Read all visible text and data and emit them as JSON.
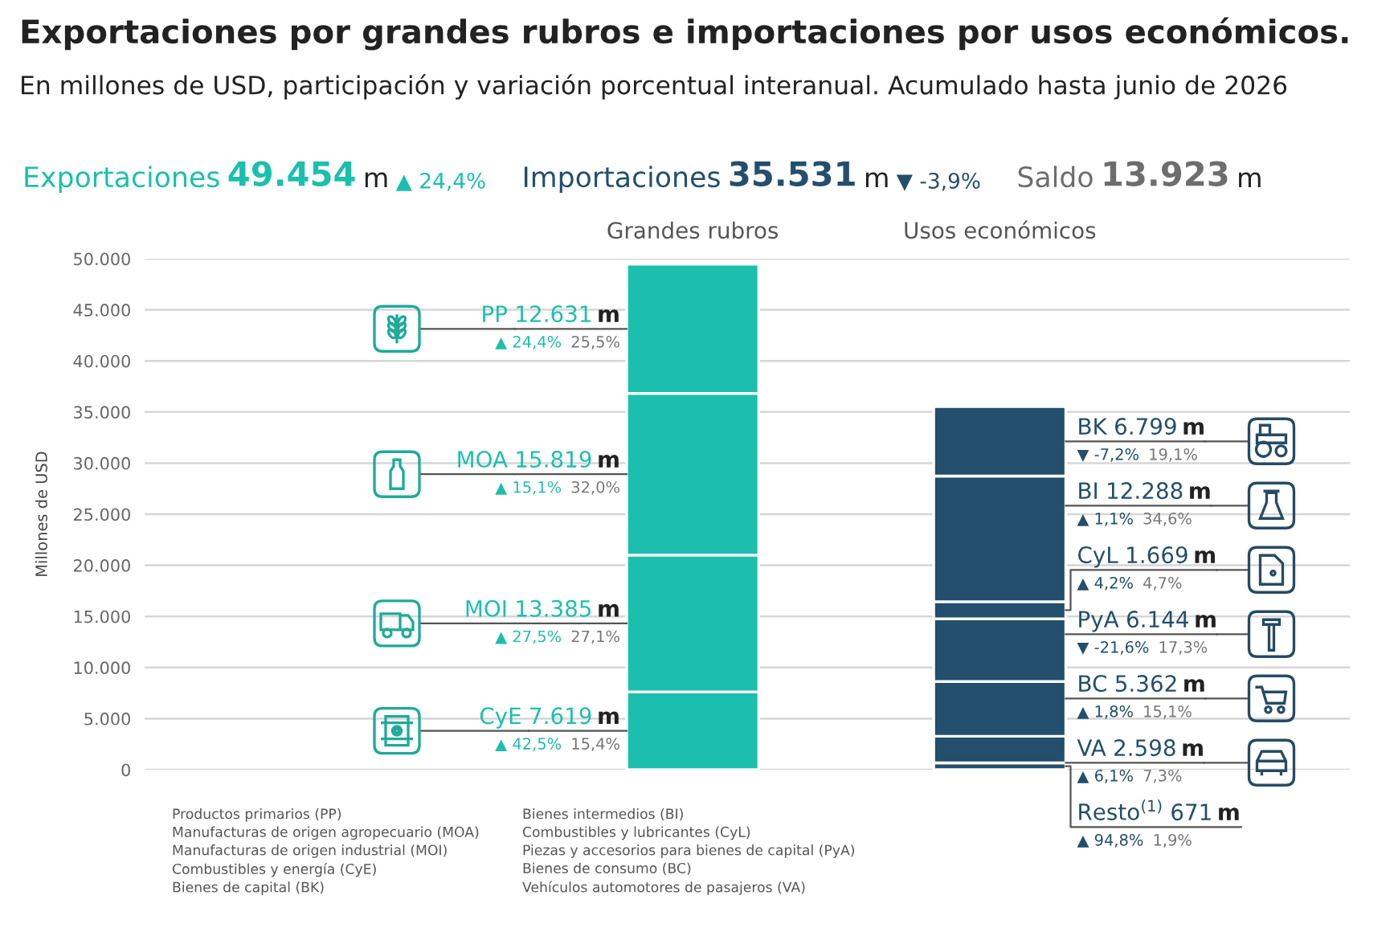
{
  "chart_data": {
    "type": "bar",
    "title": "Exportaciones por grandes rubros e importaciones por usos económicos.",
    "subtitle": "En millones de USD, participación y variación porcentual interanual. Acumulado hasta junio de 2026",
    "ylabel": "Millones de USD",
    "categories": [
      "Grandes rubros",
      "Usos económicos"
    ],
    "stacked": true,
    "series": [
      {
        "name": "CyE",
        "color": "#1cbfae",
        "values": [
          7619,
          null
        ],
        "value_labels": [
          "7.619 m",
          null
        ]
      },
      {
        "name": "MOI",
        "color": "#1cbfae",
        "values": [
          13385,
          null
        ],
        "value_labels": [
          "13.385 m",
          null
        ]
      },
      {
        "name": "MOA",
        "color": "#1cbfae",
        "values": [
          15819,
          null
        ],
        "value_labels": [
          "15.819 m",
          null
        ]
      },
      {
        "name": "PP",
        "color": "#1cbfae",
        "values": [
          12631,
          null
        ],
        "value_labels": [
          "12.631 m",
          null
        ]
      },
      {
        "name": "Resto$^{(1)}$",
        "color": "#234f6c",
        "values": [
          null,
          671
        ],
        "value_labels": [
          null,
          "671 m"
        ]
      },
      {
        "name": "VA",
        "color": "#234f6c",
        "values": [
          null,
          2598
        ],
        "value_labels": [
          null,
          "2.598 m"
        ]
      },
      {
        "name": "BC",
        "color": "#234f6c",
        "values": [
          null,
          5362
        ],
        "value_labels": [
          null,
          "5.362 m"
        ]
      },
      {
        "name": "PyA",
        "color": "#234f6c",
        "values": [
          null,
          6144
        ],
        "value_labels": [
          null,
          "6.144 m"
        ]
      },
      {
        "name": "CyL",
        "color": "#234f6c",
        "values": [
          null,
          1669
        ],
        "value_labels": [
          null,
          "1.669 m"
        ]
      },
      {
        "name": "BI",
        "color": "#234f6c",
        "values": [
          null,
          12288
        ],
        "value_labels": [
          null,
          "12.288 m"
        ]
      },
      {
        "name": "BK",
        "color": "#234f6c",
        "values": [
          null,
          6799
        ],
        "value_labels": [
          null,
          "6.799 m"
        ]
      }
    ],
    "ylim": [
      0,
      50000
    ],
    "yticks": [
      0,
      {
        "value": 5000,
        "label": "5.000"
      },
      {
        "value": 10000,
        "label": "10.000"
      },
      {
        "value": 15000,
        "label": "15.000"
      },
      {
        "value": 20000,
        "label": "20.000"
      },
      {
        "value": 25000,
        "label": "25.000"
      },
      {
        "value": 30000,
        "label": "30.000"
      },
      {
        "value": 35000,
        "label": "35.000"
      },
      {
        "value": 40000,
        "label": "40.000"
      },
      {
        "value": 45000,
        "label": "45.000"
      },
      {
        "value": 50000,
        "label": "50.000"
      }
    ],
    "grid": "y",
    "annotations": [
      "Exportaciones 49.454 m ▲ 24,4%",
      "Importaciones 35.531 m ▼ -3,9%",
      "Saldo 13.923 m",
      "▲ 42,5% 15,4%",
      "▲ 27,5% 27,1%",
      "▲ 15,1% 32,0%",
      "▲ 24,4% 25,5%",
      "▲ 94,8% 1,9%",
      "▲ 6,1% 7,3%",
      "▲ 1,8% 15,1%",
      "▼ -21,6% 17,3%",
      "▲ 4,2% 4,7%",
      "▲ 1,1% 34,6%",
      "▼ -7,2% 19,1%",
      "Productos primarios (PP)\nManufacturas de origen agropecuario (MOA)\nManufacturas de origen industrial (MOI)\nCombustibles y energía (CyE)\nBienes de capital (BK)",
      "Bienes intermedios (BI)\nCombustibles y lubricantes (CyL)\nPiezas y accesorios para bienes de capital (PyA)\nBienes de consumo (BC)\nVehículos automotores de pasajeros (VA)"
    ]
  }
}
